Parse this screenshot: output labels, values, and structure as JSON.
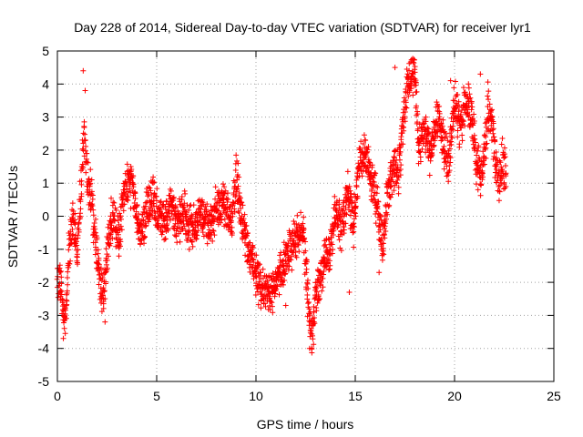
{
  "chart_data": {
    "type": "scatter",
    "title": "Day 228 of 2014, Sidereal Day-to-day VTEC variation (SDTVAR) for receiver lyr1",
    "xlabel": "GPS time / hours",
    "ylabel": "SDTVAR / TECUs",
    "xlim": [
      0,
      25
    ],
    "ylim": [
      -5,
      5
    ],
    "xticks": [
      "0",
      "5",
      "10",
      "15",
      "20",
      "25"
    ],
    "yticks": [
      "5",
      "4",
      "3",
      "2",
      "1",
      "0",
      "-1",
      "-2",
      "-3",
      "-4",
      "-5"
    ],
    "grid": true,
    "marker": "+",
    "series": [
      {
        "name": "SDTVAR",
        "color": "#ff0000",
        "trend": [
          [
            0.0,
            -1.8
          ],
          [
            0.2,
            -2.2
          ],
          [
            0.4,
            -3.2
          ],
          [
            0.6,
            -1.0
          ],
          [
            0.8,
            0.0
          ],
          [
            1.0,
            -1.2
          ],
          [
            1.2,
            1.0
          ],
          [
            1.35,
            2.6
          ],
          [
            1.5,
            1.2
          ],
          [
            1.7,
            0.6
          ],
          [
            1.9,
            -0.6
          ],
          [
            2.1,
            -1.8
          ],
          [
            2.3,
            -2.6
          ],
          [
            2.5,
            -1.2
          ],
          [
            2.8,
            0.2
          ],
          [
            3.1,
            -0.8
          ],
          [
            3.3,
            0.6
          ],
          [
            3.6,
            1.2
          ],
          [
            3.9,
            0.4
          ],
          [
            4.2,
            -0.6
          ],
          [
            4.5,
            0.2
          ],
          [
            4.8,
            0.6
          ],
          [
            5.1,
            0.0
          ],
          [
            5.4,
            -0.2
          ],
          [
            5.7,
            0.4
          ],
          [
            6.0,
            -0.1
          ],
          [
            6.4,
            0.0
          ],
          [
            6.8,
            -0.5
          ],
          [
            7.2,
            0.2
          ],
          [
            7.6,
            -0.4
          ],
          [
            8.0,
            0.2
          ],
          [
            8.4,
            0.4
          ],
          [
            8.8,
            -0.2
          ],
          [
            9.0,
            1.3
          ],
          [
            9.3,
            -0.2
          ],
          [
            9.6,
            -1.0
          ],
          [
            10.0,
            -1.8
          ],
          [
            10.4,
            -2.2
          ],
          [
            10.8,
            -2.4
          ],
          [
            11.2,
            -1.8
          ],
          [
            11.6,
            -1.1
          ],
          [
            12.0,
            -0.7
          ],
          [
            12.4,
            -0.3
          ],
          [
            12.6,
            -2.4
          ],
          [
            12.8,
            -3.6
          ],
          [
            13.0,
            -2.6
          ],
          [
            13.3,
            -1.6
          ],
          [
            13.6,
            -1.2
          ],
          [
            13.8,
            -0.8
          ],
          [
            14.0,
            0.4
          ],
          [
            14.3,
            -0.4
          ],
          [
            14.6,
            0.8
          ],
          [
            14.9,
            -0.2
          ],
          [
            15.2,
            1.6
          ],
          [
            15.5,
            1.9
          ],
          [
            15.8,
            1.2
          ],
          [
            16.1,
            0.4
          ],
          [
            16.4,
            -1.0
          ],
          [
            16.6,
            0.6
          ],
          [
            16.9,
            1.4
          ],
          [
            17.2,
            1.4
          ],
          [
            17.6,
            4.0
          ],
          [
            18.0,
            4.4
          ],
          [
            18.2,
            2.0
          ],
          [
            18.5,
            2.6
          ],
          [
            18.8,
            1.8
          ],
          [
            19.1,
            3.0
          ],
          [
            19.4,
            2.4
          ],
          [
            19.7,
            1.6
          ],
          [
            20.0,
            3.4
          ],
          [
            20.3,
            2.6
          ],
          [
            20.6,
            3.6
          ],
          [
            20.9,
            2.8
          ],
          [
            21.1,
            1.6
          ],
          [
            21.4,
            1.2
          ],
          [
            21.7,
            3.4
          ],
          [
            22.0,
            2.2
          ],
          [
            22.2,
            0.8
          ],
          [
            22.4,
            1.8
          ],
          [
            22.6,
            1.2
          ]
        ],
        "spread": 0.8,
        "points_per_hour": 110,
        "isolated_points": [
          [
            1.3,
            4.4
          ],
          [
            1.4,
            3.8
          ],
          [
            0.3,
            -3.7
          ],
          [
            2.4,
            -3.2
          ],
          [
            12.7,
            -4.0
          ],
          [
            17.0,
            4.5
          ],
          [
            16.2,
            -1.7
          ],
          [
            14.7,
            -2.3
          ],
          [
            11.5,
            -2.7
          ],
          [
            9.1,
            1.6
          ],
          [
            3.7,
            1.5
          ],
          [
            21.3,
            4.3
          ],
          [
            20.7,
            4.0
          ],
          [
            19.8,
            4.1
          ]
        ]
      }
    ]
  }
}
